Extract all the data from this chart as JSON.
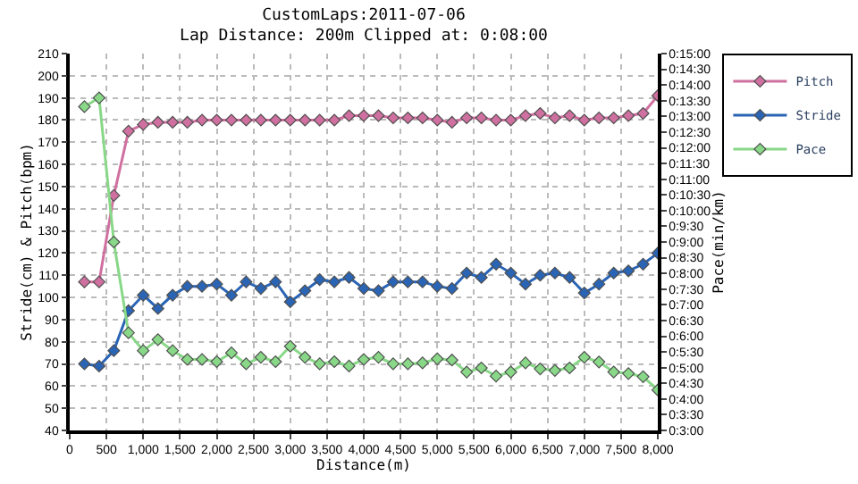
{
  "chart_data": {
    "type": "line",
    "title": "CustomLaps:2011-07-06",
    "subtitle": "Lap Distance: 200m Clipped at: 0:08:00",
    "xlabel": "Distance(m)",
    "ylabel": "Stride(cm) & Pitch(bpm)",
    "y2label": "Pace(min/km)",
    "x": [
      200,
      400,
      600,
      800,
      1000,
      1200,
      1400,
      1600,
      1800,
      2000,
      2200,
      2400,
      2600,
      2800,
      3000,
      3200,
      3400,
      3600,
      3800,
      4000,
      4200,
      4400,
      4600,
      4800,
      5000,
      5200,
      5400,
      5600,
      5800,
      6000,
      6200,
      6400,
      6600,
      6800,
      7000,
      7200,
      7400,
      7600,
      7800,
      8000
    ],
    "series": [
      {
        "name": "Pitch",
        "color": "#d070a0",
        "values": [
          107,
          107,
          146,
          175,
          178,
          179,
          179,
          179,
          180,
          180,
          180,
          180,
          180,
          180,
          180,
          180,
          180,
          180,
          182,
          182,
          182,
          181,
          181,
          181,
          180,
          179,
          181,
          181,
          180,
          180,
          182,
          183,
          181,
          182,
          180,
          181,
          181,
          182,
          183,
          191
        ]
      },
      {
        "name": "Stride",
        "color": "#2a64b4",
        "values": [
          70,
          69,
          76,
          94,
          101,
          95,
          101,
          105,
          105,
          106,
          101,
          107,
          104,
          107,
          98,
          103,
          108,
          107,
          109,
          104,
          103,
          107,
          107,
          107,
          105,
          104,
          111,
          109,
          115,
          111,
          106,
          110,
          111,
          109,
          102,
          106,
          111,
          112,
          115,
          120
        ]
      },
      {
        "name": "Pace",
        "color": "#88d888",
        "axis": "y2",
        "values": [
          13.31,
          13.59,
          9.0,
          6.11,
          5.54,
          5.89,
          5.54,
          5.26,
          5.26,
          5.19,
          5.47,
          5.12,
          5.33,
          5.19,
          5.68,
          5.33,
          5.12,
          5.19,
          5.05,
          5.26,
          5.33,
          5.12,
          5.12,
          5.15,
          5.28,
          5.24,
          4.86,
          4.99,
          4.73,
          4.86,
          5.15,
          4.96,
          4.91,
          4.99,
          5.33,
          5.18,
          4.86,
          4.81,
          4.71,
          4.29
        ]
      }
    ],
    "xlim": [
      0,
      8000
    ],
    "xticks": [
      0,
      {
        "value": 500,
        "label": "500"
      },
      {
        "value": 1000,
        "label": "1,000"
      },
      {
        "value": 1500,
        "label": "1,500"
      },
      {
        "value": 2000,
        "label": "2,000"
      },
      {
        "value": 2500,
        "label": "2,500"
      },
      {
        "value": 3000,
        "label": "3,000"
      },
      {
        "value": 3500,
        "label": "3,500"
      },
      {
        "value": 4000,
        "label": "4,000"
      },
      {
        "value": 4500,
        "label": "4,500"
      },
      {
        "value": 5000,
        "label": "5,000"
      },
      {
        "value": 5500,
        "label": "5,500"
      },
      {
        "value": 6000,
        "label": "6,000"
      },
      {
        "value": 6500,
        "label": "6,500"
      },
      {
        "value": 7000,
        "label": "7,000"
      },
      {
        "value": 7500,
        "label": "7,500"
      },
      {
        "value": 8000,
        "label": "8,000"
      }
    ],
    "ylim": [
      40,
      210
    ],
    "yticks": [
      40,
      50,
      60,
      70,
      80,
      90,
      100,
      110,
      120,
      130,
      140,
      150,
      160,
      170,
      180,
      190,
      200,
      210
    ],
    "y2lim": [
      3,
      15
    ],
    "y2ticks": [
      {
        "value": 3,
        "label": "0:3:00"
      },
      {
        "value": 3.5,
        "label": "0:3:30"
      },
      {
        "value": 4,
        "label": "0:4:00"
      },
      {
        "value": 4.5,
        "label": "0:4:30"
      },
      {
        "value": 5,
        "label": "0:5:00"
      },
      {
        "value": 5.5,
        "label": "0:5:30"
      },
      {
        "value": 6,
        "label": "0:6:00"
      },
      {
        "value": 6.5,
        "label": "0:6:30"
      },
      {
        "value": 7,
        "label": "0:7:00"
      },
      {
        "value": 7.5,
        "label": "0:7:30"
      },
      {
        "value": 8,
        "label": "0:8:00"
      },
      {
        "value": 8.5,
        "label": "0:8:30"
      },
      {
        "value": 9,
        "label": "0:9:00"
      },
      {
        "value": 9.5,
        "label": "0:9:30"
      },
      {
        "value": 10,
        "label": "0:10:00"
      },
      {
        "value": 10.5,
        "label": "0:10:30"
      },
      {
        "value": 11,
        "label": "0:11:00"
      },
      {
        "value": 11.5,
        "label": "0:11:30"
      },
      {
        "value": 12,
        "label": "0:12:00"
      },
      {
        "value": 12.5,
        "label": "0:12:30"
      },
      {
        "value": 13,
        "label": "0:13:00"
      },
      {
        "value": 13.5,
        "label": "0:13:30"
      },
      {
        "value": 14,
        "label": "0:14:00"
      },
      {
        "value": 14.5,
        "label": "0:14:30"
      },
      {
        "value": 15,
        "label": "0:15:00"
      }
    ],
    "grid": true,
    "legend": "top right",
    "marker": "diamond",
    "line_style": "solid"
  }
}
